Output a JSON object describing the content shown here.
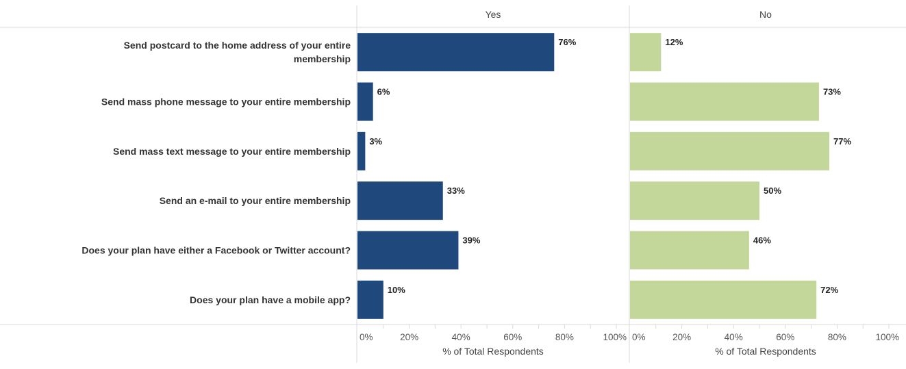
{
  "chart_data": {
    "type": "bar",
    "orientation": "horizontal",
    "categories": [
      [
        "Send postcard to the home address of your entire",
        "membership"
      ],
      [
        "Send mass phone message to your entire membership"
      ],
      [
        "Send mass text message to your entire membership"
      ],
      [
        "Send an e-mail to your entire membership"
      ],
      [
        "Does your plan have either a Facebook or Twitter account?"
      ],
      [
        "Does your plan have a mobile app?"
      ]
    ],
    "series": [
      {
        "name": "Yes",
        "color": "#1f497d",
        "values": [
          76,
          6,
          3,
          33,
          39,
          10
        ],
        "labels": [
          "76%",
          "6%",
          "3%",
          "33%",
          "39%",
          "10%"
        ]
      },
      {
        "name": "No",
        "color": "#c4d79b",
        "values": [
          12,
          73,
          77,
          50,
          46,
          72
        ],
        "labels": [
          "12%",
          "73%",
          "77%",
          "50%",
          "46%",
          "72%"
        ]
      }
    ],
    "xlim": [
      0,
      100
    ],
    "xticks": [
      "0%",
      "20%",
      "40%",
      "60%",
      "80%",
      "100%"
    ],
    "xlabel": "% of Total Respondents",
    "grid": false,
    "legend": "none"
  }
}
